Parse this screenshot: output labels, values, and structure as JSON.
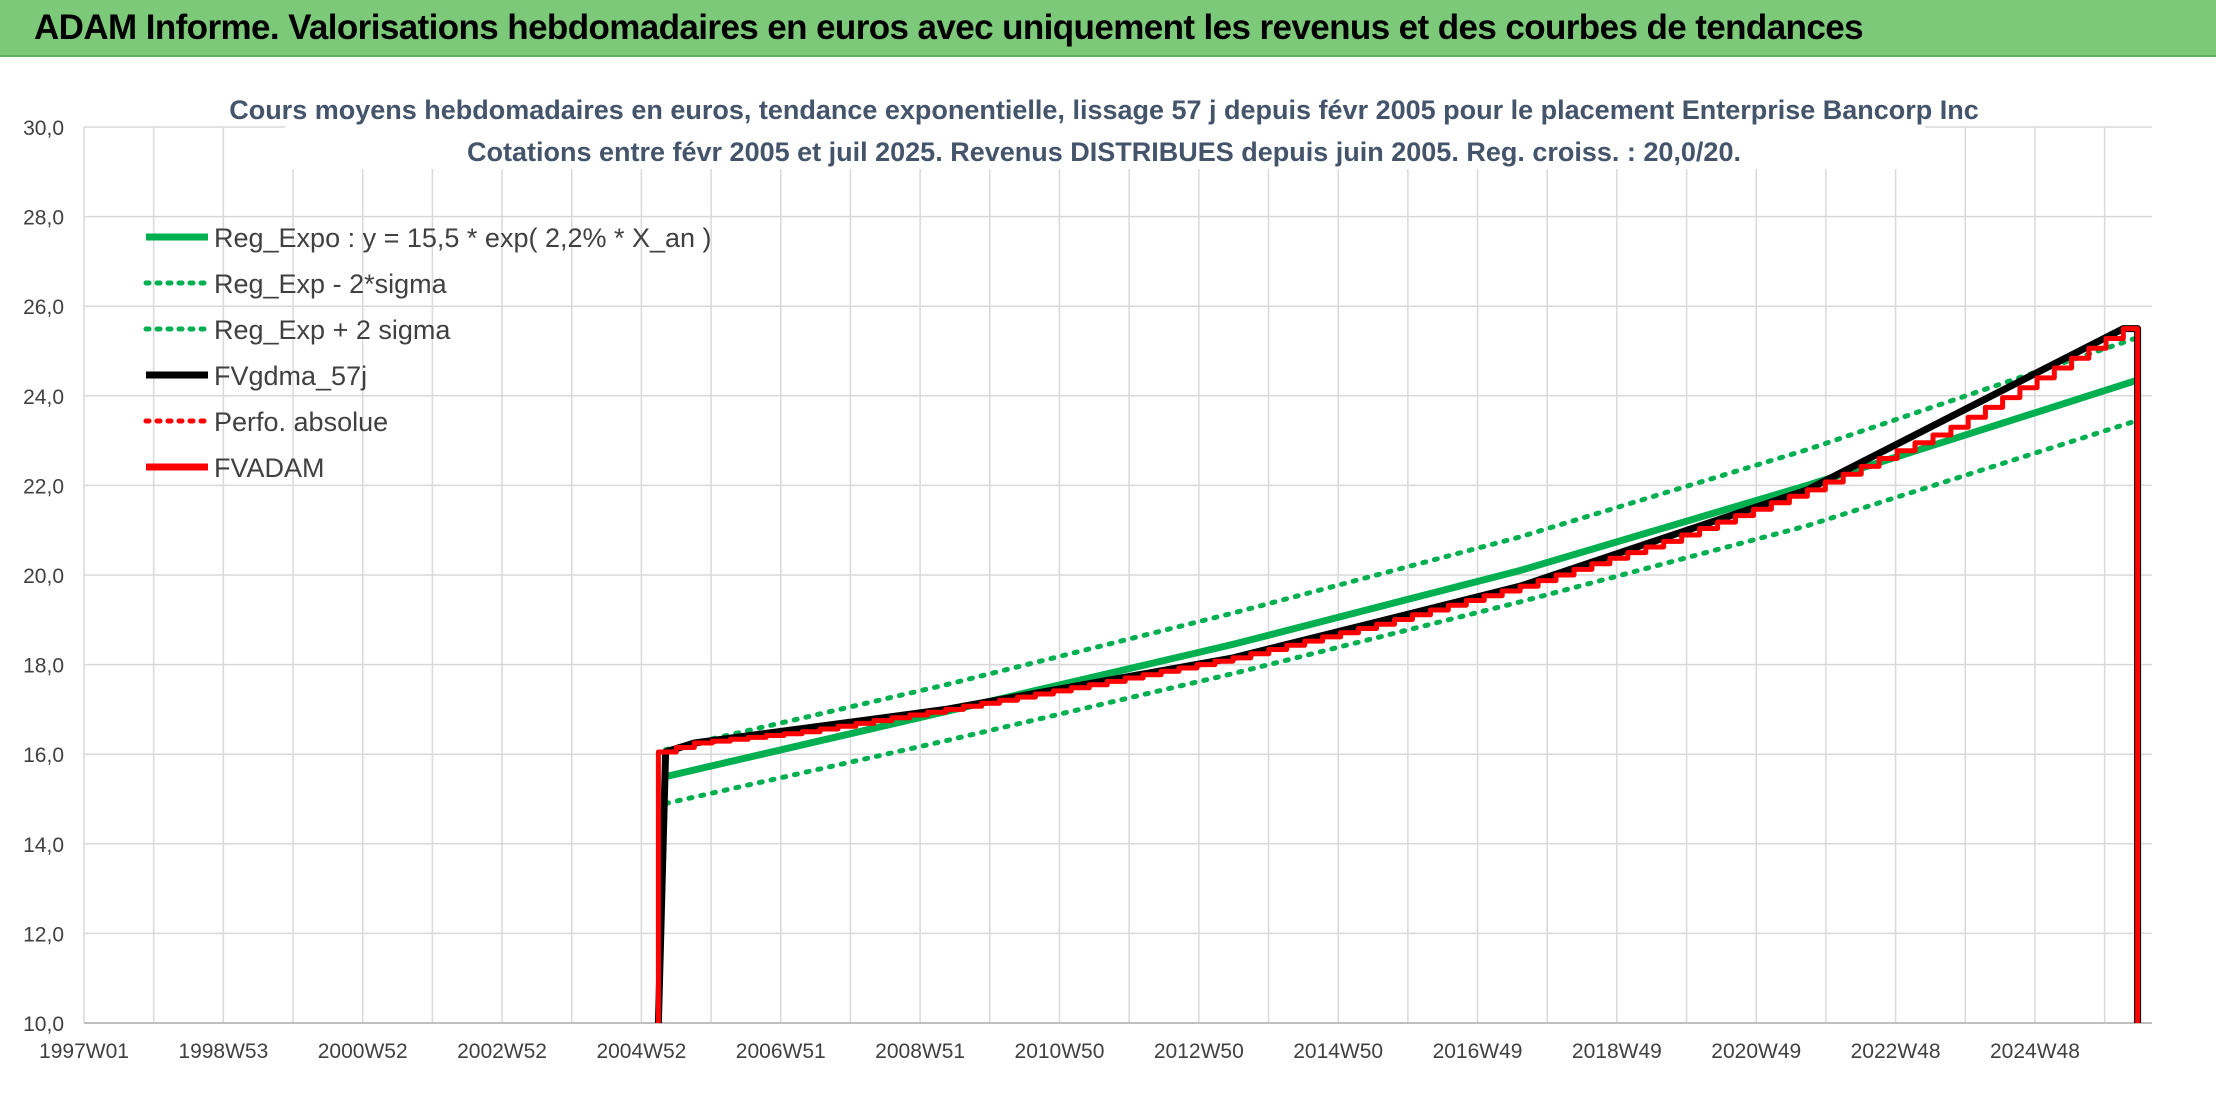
{
  "banner": {
    "title": "ADAM Informe. Valorisations hebdomadaires en euros avec uniquement les revenus et des courbes de tendances"
  },
  "colors": {
    "banner_bg": "#7dc97a",
    "trend_green": "#00b050",
    "fvadam_red": "#ff0000",
    "gdma_black": "#000000",
    "perfo_red": "#ff0000",
    "grid": "#d9d9d9"
  },
  "chart_data": {
    "type": "line",
    "title_lines": [
      "Cours moyens hebdomadaires en euros, tendance exponentielle, lissage 57 j depuis févr 2005 pour le placement Enterprise Bancorp Inc",
      "Cotations entre févr 2005 et juil 2025. Revenus DISTRIBUES depuis juin 2005. Reg. croiss. : 20,0/20."
    ],
    "x_tick_labels": [
      "1997W01",
      "1998W53",
      "2000W52",
      "2002W52",
      "2004W52",
      "2006W51",
      "2008W51",
      "2010W50",
      "2012W50",
      "2014W50",
      "2016W49",
      "2018W49",
      "2020W49",
      "2022W48",
      "2024W48"
    ],
    "x_range_years": [
      1997.0,
      2025.8
    ],
    "ylim": [
      10,
      30
    ],
    "y_tick_labels": [
      "10,0",
      "12,0",
      "14,0",
      "16,0",
      "18,0",
      "20,0",
      "22,0",
      "24,0",
      "26,0",
      "28,0",
      "30,0"
    ],
    "grid": true,
    "legend_position": "top-left",
    "legend": [
      {
        "label": "Reg_Expo : y = 15,5 * exp( 2,2% *  X_an )",
        "color": "#00b050",
        "style": "solid"
      },
      {
        "label": "Reg_Exp - 2*sigma",
        "color": "#00b050",
        "style": "dotted"
      },
      {
        "label": "Reg_Exp + 2 sigma",
        "color": "#00b050",
        "style": "dotted"
      },
      {
        "label": "FVgdma_57j",
        "color": "#000000",
        "style": "solid"
      },
      {
        "label": "Perfo. absolue",
        "color": "#ff0000",
        "style": "dotted"
      },
      {
        "label": "FVADAM",
        "color": "#ff0000",
        "style": "solid"
      }
    ],
    "series": [
      {
        "name": "Reg_Expo : y = 15,5 * exp( 2,2% *  X_an )",
        "x": [
          2005.1,
          2009.0,
          2013.0,
          2017.0,
          2021.0,
          2025.6
        ],
        "values": [
          15.5,
          16.95,
          18.45,
          20.1,
          22.0,
          24.35
        ]
      },
      {
        "name": "Reg_Exp - 2*sigma",
        "x": [
          2005.1,
          2009.0,
          2013.0,
          2017.0,
          2021.0,
          2025.6
        ],
        "values": [
          14.9,
          16.3,
          17.8,
          19.4,
          21.1,
          23.45
        ]
      },
      {
        "name": "Reg_Exp + 2 sigma",
        "x": [
          2005.1,
          2009.0,
          2013.0,
          2017.0,
          2021.0,
          2025.6
        ],
        "values": [
          16.1,
          17.55,
          19.15,
          20.85,
          22.8,
          25.3
        ]
      },
      {
        "name": "FVgdma_57j",
        "x": [
          2005.0,
          2005.1,
          2005.5,
          2009.0,
          2013.0,
          2017.0,
          2021.0,
          2025.4,
          2025.6,
          2025.6
        ],
        "values": [
          10.0,
          16.05,
          16.25,
          17.0,
          18.15,
          19.75,
          21.9,
          25.5,
          25.5,
          10.0
        ]
      },
      {
        "name": "FVADAM",
        "x": [
          2005.0,
          2005.0,
          2005.5,
          2007.0,
          2009.0,
          2011.0,
          2013.0,
          2015.0,
          2017.0,
          2019.0,
          2021.0,
          2023.0,
          2025.4,
          2025.6,
          2025.6
        ],
        "values": [
          10.0,
          16.05,
          16.25,
          16.5,
          17.0,
          17.55,
          18.15,
          18.9,
          19.75,
          20.75,
          21.9,
          23.3,
          25.5,
          25.5,
          10.0
        ]
      }
    ]
  }
}
